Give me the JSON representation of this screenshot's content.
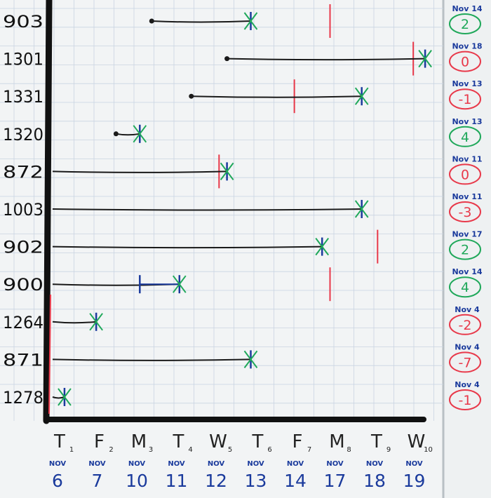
{
  "tickets": [
    {
      "id": "903",
      "start": 2.5,
      "end": 5.0,
      "done": true,
      "due": 7.0
    },
    {
      "id": "1301",
      "start": 4.4,
      "end": 9.4,
      "done": false,
      "due": 9.1
    },
    {
      "id": "1331",
      "start": 3.5,
      "end": 7.8,
      "done": true,
      "due": 6.1
    },
    {
      "id": "1320",
      "start": 1.6,
      "end": 2.2,
      "done": true,
      "due": null
    },
    {
      "id": "872",
      "start": 0.0,
      "end": 4.4,
      "done": true,
      "due": 4.2
    },
    {
      "id": "1003",
      "start": 0.0,
      "end": 7.8,
      "done": true,
      "due": null
    },
    {
      "id": "902",
      "start": 0.0,
      "end": 6.8,
      "done": true,
      "due": 8.2
    },
    {
      "id": "900",
      "start": 0.0,
      "end": 3.2,
      "done": true,
      "due": 7.0,
      "mid": 2.2
    },
    {
      "id": "1264",
      "start": 0.0,
      "end": 1.1,
      "done": true,
      "due": null
    },
    {
      "id": "871",
      "start": 0.0,
      "end": 5.0,
      "done": true,
      "due": null
    },
    {
      "id": "1278",
      "start": 0.0,
      "end": 0.3,
      "done": true,
      "due": null
    }
  ],
  "start_line": 0.0,
  "due_labels": [
    {
      "date": "Nov 14",
      "delta": "2",
      "color": "#1fa85a"
    },
    {
      "date": "Nov 18",
      "delta": "0",
      "color": "#e8394a"
    },
    {
      "date": "Nov 13",
      "delta": "-1",
      "color": "#e8394a"
    },
    {
      "date": "Nov 13",
      "delta": "4",
      "color": "#1fa85a"
    },
    {
      "date": "Nov 11",
      "delta": "0",
      "color": "#e8394a"
    },
    {
      "date": "Nov 11",
      "delta": "-3",
      "color": "#e8394a"
    },
    {
      "date": "Nov 17",
      "delta": "2",
      "color": "#1fa85a"
    },
    {
      "date": "Nov 14",
      "delta": "4",
      "color": "#1fa85a"
    },
    {
      "date": "Nov 4",
      "delta": "-2",
      "color": "#e8394a"
    },
    {
      "date": "Nov 4",
      "delta": "-7",
      "color": "#e8394a"
    },
    {
      "date": "Nov 4",
      "delta": "-1",
      "color": "#e8394a"
    }
  ],
  "days": [
    {
      "letter": "T",
      "index": "1",
      "month": "NOV",
      "date": "6"
    },
    {
      "letter": "F",
      "index": "2",
      "month": "NOV",
      "date": "7"
    },
    {
      "letter": "M",
      "index": "3",
      "month": "NOV",
      "date": "10"
    },
    {
      "letter": "T",
      "index": "4",
      "month": "NOV",
      "date": "11"
    },
    {
      "letter": "W",
      "index": "5",
      "month": "NOV",
      "date": "12"
    },
    {
      "letter": "T",
      "index": "6",
      "month": "NOV",
      "date": "13"
    },
    {
      "letter": "F",
      "index": "7",
      "month": "NOV",
      "date": "14"
    },
    {
      "letter": "M",
      "index": "8",
      "month": "NOV",
      "date": "17"
    },
    {
      "letter": "T",
      "index": "9",
      "month": "NOV",
      "date": "18"
    },
    {
      "letter": "W",
      "index": "10",
      "month": "NOV",
      "date": "19"
    }
  ],
  "colors": {
    "board": "#f2f4f5",
    "grid": "#c9d4e2",
    "axis": "#111111",
    "line": "#1a1a1a",
    "due": "#e8394a",
    "blue_ink": "#1a3a9c",
    "green_ink": "#1fa85a"
  }
}
